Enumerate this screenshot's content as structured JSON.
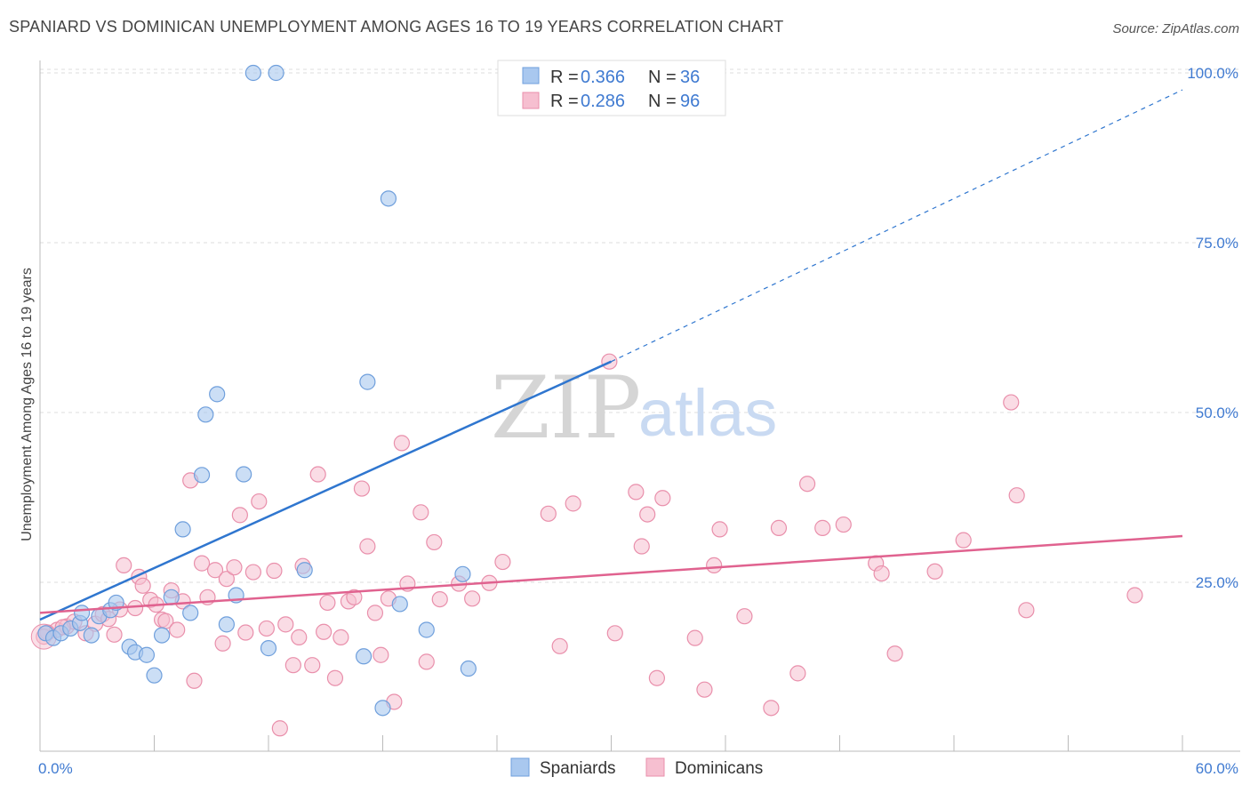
{
  "title": "SPANIARD VS DOMINICAN UNEMPLOYMENT AMONG AGES 16 TO 19 YEARS CORRELATION CHART",
  "source": "Source: ZipAtlas.com",
  "watermark": {
    "part1": "ZIP",
    "part2": "atlas"
  },
  "colors": {
    "blue_fill": "#a9c8ef",
    "blue_stroke": "#6f9fdc",
    "blue_line": "#2f76cf",
    "pink_fill": "#f6bfd0",
    "pink_stroke": "#e98fab",
    "pink_line": "#e0628f",
    "axis_text": "#3f7ad1",
    "grid": "#dddddd"
  },
  "legend": {
    "row1": {
      "r_label": "R =",
      "r_value": "0.366",
      "n_label": "N =",
      "n_value": "36"
    },
    "row2": {
      "r_label": "R =",
      "r_value": "0.286",
      "n_label": "N =",
      "n_value": "96"
    }
  },
  "chart_data": {
    "type": "scatter",
    "ylabel": "Unemployment Among Ages 16 to 19 years",
    "xlim": [
      0,
      60
    ],
    "ylim": [
      0,
      105
    ],
    "x_tick_labels": [
      "0.0%",
      "60.0%"
    ],
    "y_ticks": [
      25,
      50,
      75,
      100
    ],
    "y_tick_labels": [
      "25.0%",
      "50.0%",
      "75.0%",
      "100.0%"
    ],
    "grid": true,
    "legend_position": "top-center",
    "series": [
      {
        "name": "Spaniards",
        "color": "#a9c8ef",
        "trend": {
          "x0": 0,
          "y0": 19.5,
          "x1": 30,
          "y1": 57.5,
          "dashed_to_x": 60,
          "dashed_to_y": 97.5
        },
        "points": [
          [
            0.3,
            17.5
          ],
          [
            0.7,
            16.8
          ],
          [
            1.1,
            17.5
          ],
          [
            1.6,
            18.2
          ],
          [
            2.1,
            19.0
          ],
          [
            2.2,
            20.5
          ],
          [
            2.7,
            17.2
          ],
          [
            3.1,
            20.0
          ],
          [
            3.7,
            20.9
          ],
          [
            4.0,
            22.0
          ],
          [
            4.7,
            15.5
          ],
          [
            5.0,
            14.7
          ],
          [
            5.6,
            14.3
          ],
          [
            6.0,
            11.3
          ],
          [
            6.4,
            17.2
          ],
          [
            6.9,
            22.8
          ],
          [
            7.5,
            32.8
          ],
          [
            7.9,
            20.5
          ],
          [
            8.5,
            40.8
          ],
          [
            8.7,
            49.7
          ],
          [
            9.3,
            52.7
          ],
          [
            9.8,
            18.8
          ],
          [
            10.3,
            23.1
          ],
          [
            10.7,
            40.9
          ],
          [
            11.2,
            100.0
          ],
          [
            12.0,
            15.3
          ],
          [
            12.4,
            100.0
          ],
          [
            13.9,
            26.8
          ],
          [
            17.0,
            14.1
          ],
          [
            17.2,
            54.5
          ],
          [
            18.0,
            6.5
          ],
          [
            18.3,
            81.5
          ],
          [
            18.9,
            21.8
          ],
          [
            20.3,
            18.0
          ],
          [
            22.2,
            26.2
          ],
          [
            22.5,
            12.3
          ]
        ]
      },
      {
        "name": "Dominicans",
        "color": "#f6bfd0",
        "trend": {
          "x0": 0,
          "y0": 20.5,
          "x1": 60,
          "y1": 31.8
        },
        "points": [
          [
            0.4,
            17.6
          ],
          [
            0.9,
            18.0
          ],
          [
            1.4,
            18.5
          ],
          [
            1.8,
            19.2
          ],
          [
            2.4,
            17.5
          ],
          [
            2.9,
            18.9
          ],
          [
            3.3,
            20.3
          ],
          [
            3.6,
            19.6
          ],
          [
            3.9,
            17.3
          ],
          [
            4.2,
            21.0
          ],
          [
            4.4,
            27.5
          ],
          [
            5.0,
            21.2
          ],
          [
            5.2,
            25.8
          ],
          [
            5.4,
            24.5
          ],
          [
            5.8,
            22.4
          ],
          [
            6.1,
            21.7
          ],
          [
            6.4,
            19.5
          ],
          [
            6.6,
            19.3
          ],
          [
            6.9,
            23.8
          ],
          [
            7.2,
            18.0
          ],
          [
            7.5,
            22.2
          ],
          [
            7.9,
            40.0
          ],
          [
            8.1,
            10.5
          ],
          [
            8.5,
            27.8
          ],
          [
            8.8,
            22.8
          ],
          [
            9.2,
            26.8
          ],
          [
            9.6,
            16.0
          ],
          [
            9.8,
            25.5
          ],
          [
            10.2,
            27.2
          ],
          [
            10.5,
            34.9
          ],
          [
            10.8,
            17.6
          ],
          [
            11.2,
            26.5
          ],
          [
            11.5,
            36.9
          ],
          [
            11.9,
            18.2
          ],
          [
            12.3,
            26.7
          ],
          [
            12.6,
            3.5
          ],
          [
            12.9,
            18.8
          ],
          [
            13.3,
            12.8
          ],
          [
            13.6,
            16.9
          ],
          [
            13.8,
            27.4
          ],
          [
            14.3,
            12.8
          ],
          [
            14.6,
            40.9
          ],
          [
            14.9,
            17.7
          ],
          [
            15.1,
            22.0
          ],
          [
            15.5,
            10.9
          ],
          [
            15.8,
            16.9
          ],
          [
            16.2,
            22.2
          ],
          [
            16.5,
            22.8
          ],
          [
            16.9,
            38.8
          ],
          [
            17.2,
            30.3
          ],
          [
            17.6,
            20.5
          ],
          [
            17.9,
            14.3
          ],
          [
            18.3,
            22.6
          ],
          [
            18.6,
            7.4
          ],
          [
            19.0,
            45.5
          ],
          [
            19.3,
            24.8
          ],
          [
            20.0,
            35.3
          ],
          [
            20.3,
            13.3
          ],
          [
            20.7,
            30.9
          ],
          [
            21.0,
            22.5
          ],
          [
            22.0,
            24.8
          ],
          [
            22.7,
            22.6
          ],
          [
            23.6,
            24.9
          ],
          [
            24.3,
            28.0
          ],
          [
            26.7,
            35.1
          ],
          [
            27.3,
            15.6
          ],
          [
            28.0,
            36.6
          ],
          [
            29.9,
            57.5
          ],
          [
            30.2,
            17.5
          ],
          [
            31.3,
            38.3
          ],
          [
            31.6,
            30.3
          ],
          [
            31.9,
            35.0
          ],
          [
            32.4,
            10.9
          ],
          [
            32.7,
            37.4
          ],
          [
            34.4,
            16.8
          ],
          [
            34.9,
            9.2
          ],
          [
            35.4,
            27.5
          ],
          [
            35.7,
            32.8
          ],
          [
            37.0,
            20.0
          ],
          [
            38.4,
            6.5
          ],
          [
            38.8,
            33.0
          ],
          [
            39.8,
            11.6
          ],
          [
            40.3,
            39.5
          ],
          [
            41.1,
            33.0
          ],
          [
            42.2,
            33.5
          ],
          [
            43.9,
            27.8
          ],
          [
            44.2,
            26.3
          ],
          [
            44.9,
            14.5
          ],
          [
            47.0,
            26.6
          ],
          [
            48.5,
            31.2
          ],
          [
            51.0,
            51.5
          ],
          [
            51.3,
            37.8
          ],
          [
            51.8,
            20.9
          ],
          [
            57.5,
            23.1
          ],
          [
            0.2,
            17.0
          ],
          [
            1.2,
            18.4
          ]
        ]
      }
    ]
  }
}
